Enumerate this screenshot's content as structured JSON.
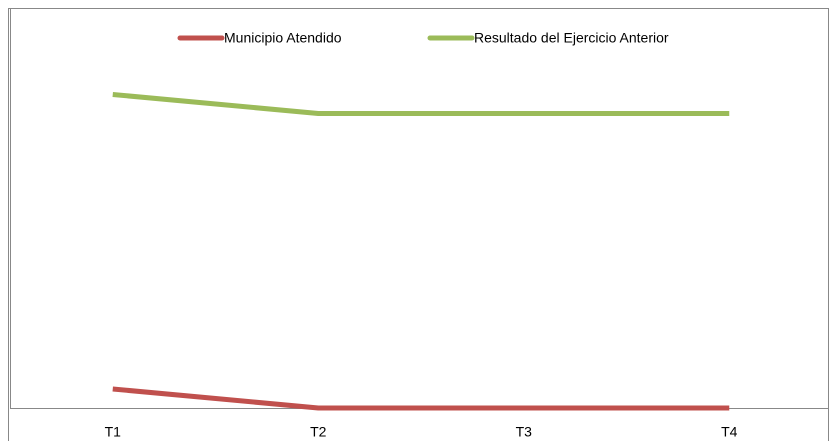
{
  "chart_data": {
    "type": "line",
    "categories": [
      "T1",
      "T2",
      "T3",
      "T4"
    ],
    "series": [
      {
        "name": "Municipio Atendido",
        "color": "#c0504d",
        "values": [
          1,
          0,
          0,
          0
        ]
      },
      {
        "name": "Resultado del Ejercicio Anterior",
        "color": "#9bbb59",
        "values": [
          16.5,
          15.5,
          15.5,
          15.5
        ]
      }
    ],
    "ylim": [
      0,
      21
    ],
    "legend": "top"
  }
}
